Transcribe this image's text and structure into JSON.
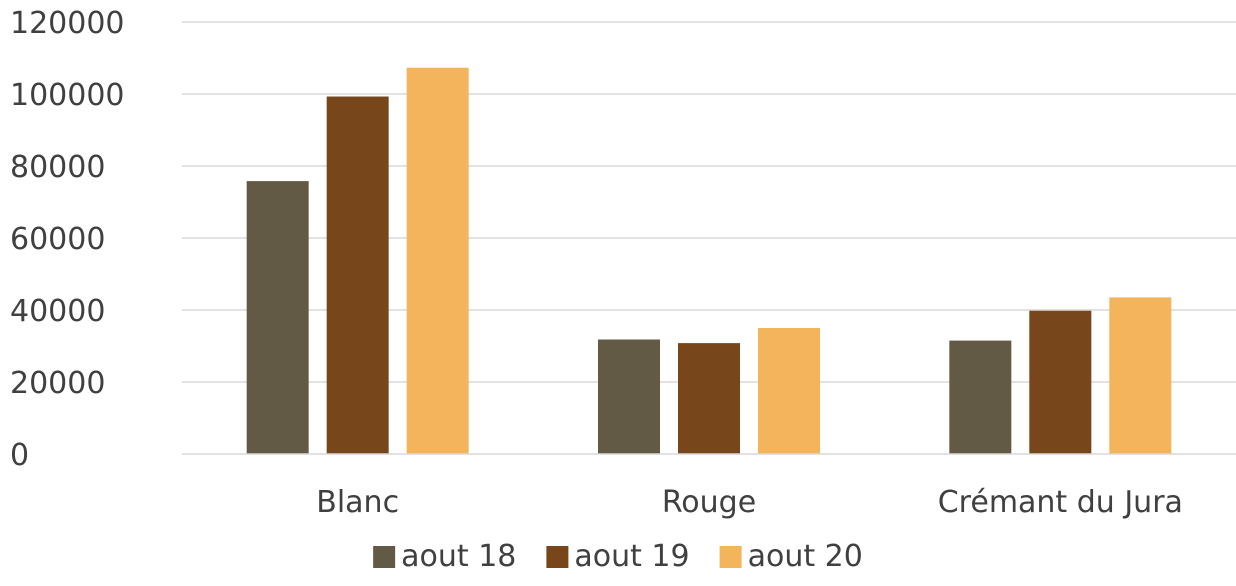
{
  "chart_data": {
    "type": "bar",
    "title": "",
    "xlabel": "",
    "ylabel": "",
    "categories": [
      "Blanc",
      "Rouge",
      "Crémant du Jura"
    ],
    "series": [
      {
        "name": "aout 18",
        "color": "#625a44",
        "values": [
          75800,
          31800,
          31500
        ]
      },
      {
        "name": "aout 19",
        "color": "#77461a",
        "values": [
          99300,
          30800,
          39800
        ]
      },
      {
        "name": "aout 20",
        "color": "#f3b45b",
        "values": [
          107300,
          35000,
          43500
        ]
      }
    ],
    "ylim": [
      0,
      120000
    ],
    "yticks": [
      0,
      20000,
      40000,
      60000,
      80000,
      100000,
      120000
    ],
    "ytick_labels": [
      "0",
      "20000",
      "40000",
      "60000",
      "80000",
      "100000",
      "120000"
    ],
    "grid": true,
    "legend_position": "bottom"
  }
}
